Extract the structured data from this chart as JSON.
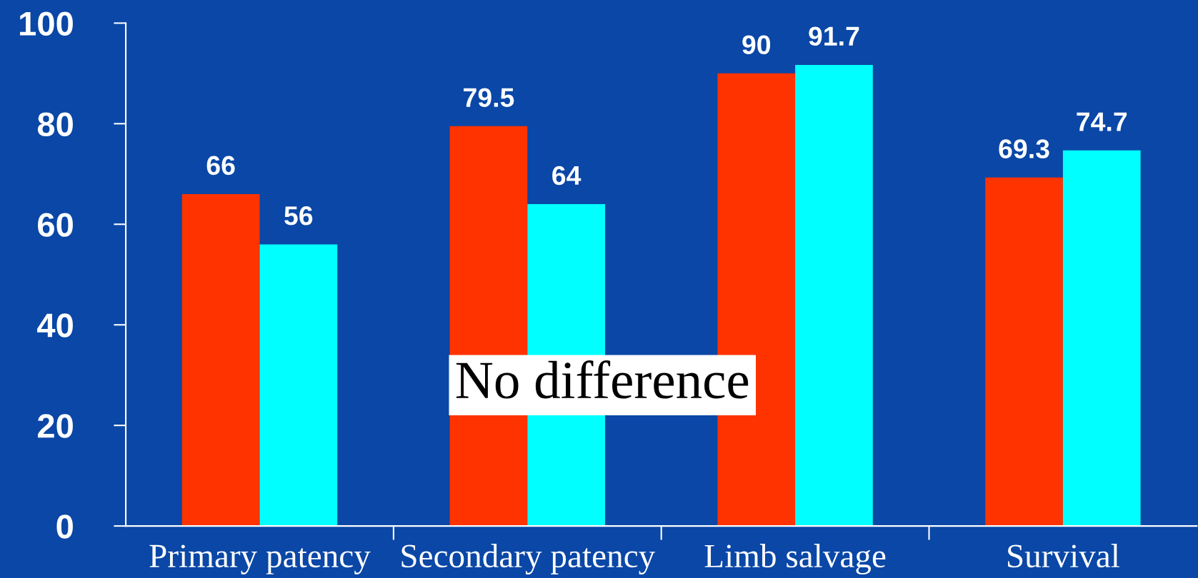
{
  "chart_data": {
    "type": "bar",
    "categories": [
      "Primary patency",
      "Secondary patency",
      "Limb salvage",
      "Survival"
    ],
    "series": [
      {
        "color": "#ff3300",
        "values": [
          66,
          79.5,
          90,
          69.3
        ]
      },
      {
        "color": "#00ffff",
        "values": [
          56,
          64,
          91.7,
          74.7
        ]
      }
    ],
    "ylim": [
      0,
      100
    ],
    "yticks": [
      0,
      20,
      40,
      60,
      80,
      100
    ],
    "data_labels": true,
    "grid": false,
    "legend": false,
    "annotations": [
      "No difference"
    ]
  }
}
